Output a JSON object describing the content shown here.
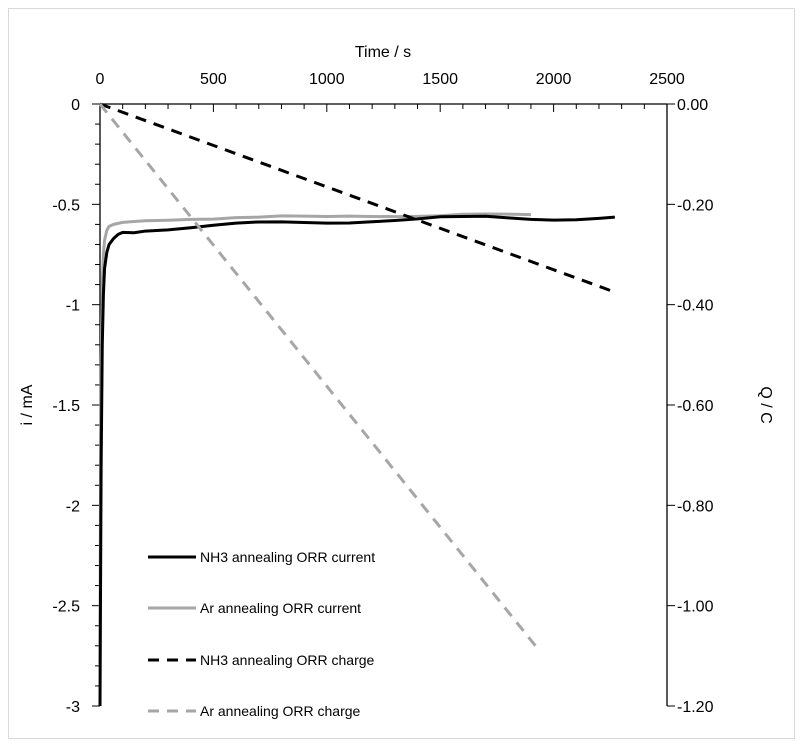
{
  "chart_data": {
    "type": "line",
    "title": "",
    "xlabel": "Time / s",
    "ylabel": "i / mA",
    "y2label": "Q / C",
    "xlim": [
      0,
      2500
    ],
    "ylim": [
      -3,
      0
    ],
    "y2lim": [
      -1.2,
      0
    ],
    "x_ticks": [
      "0",
      "500",
      "1000",
      "1500",
      "2000",
      "2500"
    ],
    "y_ticks": [
      "0",
      "-0.5",
      "-1",
      "-1.5",
      "-2",
      "-2.5",
      "-3"
    ],
    "y2_ticks": [
      "0.00",
      "-0.20",
      "-0.40",
      "-0.60",
      "-0.80",
      "-1.00",
      "-1.20"
    ],
    "grid": false,
    "legend_position": "lower-left",
    "series": [
      {
        "name": "NH3 annealing ORR current",
        "axis": "left",
        "color": "#000000",
        "dash": "solid",
        "x": [
          0,
          2,
          5,
          10,
          15,
          20,
          30,
          40,
          60,
          80,
          100,
          150,
          200,
          300,
          400,
          500,
          600,
          700,
          800,
          900,
          1000,
          1100,
          1200,
          1300,
          1400,
          1500,
          1600,
          1700,
          1800,
          1900,
          2000,
          2100,
          2200,
          2270
        ],
        "y": [
          -3.0,
          -2.5,
          -1.8,
          -1.2,
          -0.95,
          -0.82,
          -0.74,
          -0.7,
          -0.67,
          -0.65,
          -0.64,
          -0.63,
          -0.62,
          -0.615,
          -0.61,
          -0.605,
          -0.6,
          -0.595,
          -0.59,
          -0.585,
          -0.58,
          -0.575,
          -0.57,
          -0.57,
          -0.57,
          -0.565,
          -0.565,
          -0.56,
          -0.56,
          -0.56,
          -0.56,
          -0.56,
          -0.56,
          -0.56
        ]
      },
      {
        "name": "Ar annealing ORR current",
        "axis": "left",
        "color": "#a6a6a6",
        "dash": "solid",
        "x": [
          0,
          2,
          5,
          10,
          15,
          20,
          30,
          40,
          60,
          80,
          100,
          150,
          200,
          300,
          400,
          500,
          600,
          700,
          800,
          900,
          1000,
          1100,
          1200,
          1300,
          1400,
          1500,
          1600,
          1700,
          1800,
          1900
        ],
        "y": [
          -2.8,
          -2.0,
          -1.3,
          -0.9,
          -0.75,
          -0.68,
          -0.63,
          -0.61,
          -0.6,
          -0.595,
          -0.59,
          -0.585,
          -0.58,
          -0.575,
          -0.57,
          -0.57,
          -0.565,
          -0.565,
          -0.56,
          -0.56,
          -0.56,
          -0.555,
          -0.555,
          -0.555,
          -0.555,
          -0.555,
          -0.55,
          -0.55,
          -0.55,
          -0.55
        ]
      },
      {
        "name": "NH3 annealing ORR charge",
        "axis": "right",
        "color": "#000000",
        "dash": "dashed",
        "x": [
          0,
          2270
        ],
        "y": [
          0.0,
          -0.375
        ]
      },
      {
        "name": "Ar annealing ORR charge",
        "axis": "right",
        "color": "#a6a6a6",
        "dash": "dashed",
        "x": [
          0,
          1920
        ],
        "y": [
          0.0,
          -1.08
        ]
      }
    ]
  }
}
